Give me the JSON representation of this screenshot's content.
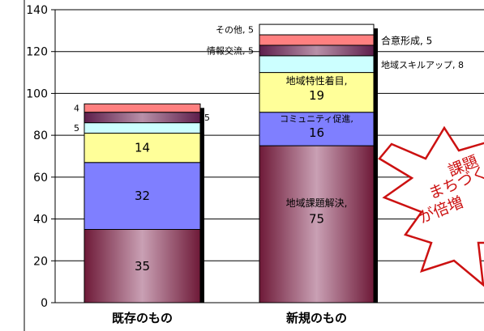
{
  "chart_data": {
    "type": "bar",
    "stacked": true,
    "categories": [
      "既存のもの",
      "新規のもの"
    ],
    "ylim": [
      0,
      140
    ],
    "yticks": [
      0,
      20,
      40,
      60,
      80,
      100,
      120,
      140
    ],
    "grid": true,
    "series": [
      {
        "name": "地域課題解決",
        "values": [
          35,
          75
        ],
        "color": "#8a2a4a"
      },
      {
        "name": "コミュニティ促進",
        "values": [
          32,
          16
        ],
        "color": "#7f7fff"
      },
      {
        "name": "地域特性着目",
        "values": [
          14,
          19
        ],
        "color": "#ffff99"
      },
      {
        "name": "地域スキルアップ",
        "values": [
          5,
          8
        ],
        "color": "#ccffff"
      },
      {
        "name": "情報交流",
        "values": [
          5,
          5
        ],
        "color": "#7a2f63"
      },
      {
        "name": "合意形成",
        "values": [
          4,
          5
        ],
        "color": "#ff8080"
      },
      {
        "name": "その他",
        "values": [
          0,
          5
        ],
        "color": "#ffffff"
      }
    ],
    "data_labels": [
      [
        "35",
        "75"
      ],
      [
        "32",
        "16"
      ],
      [
        "14",
        "19"
      ],
      [
        "5",
        "8"
      ],
      [
        "5",
        "5"
      ],
      [
        "4",
        "5"
      ],
      [
        "",
        "5"
      ]
    ],
    "series_labels_on_chart": {
      "地域課題解決": "地域課題解決,",
      "コミュニティ促進": "コミュニティ促進,",
      "地域特性着目": "地域特性着目,",
      "地域スキルアップ": "地域スキルアップ, 8",
      "情報交流": "情報交流, 5",
      "合意形成": "合意形成, 5",
      "その他": "その他, 5"
    },
    "annotation": {
      "lines": [
        "課題",
        "まちづく",
        "が倍増"
      ],
      "color": "#cc1111"
    }
  }
}
